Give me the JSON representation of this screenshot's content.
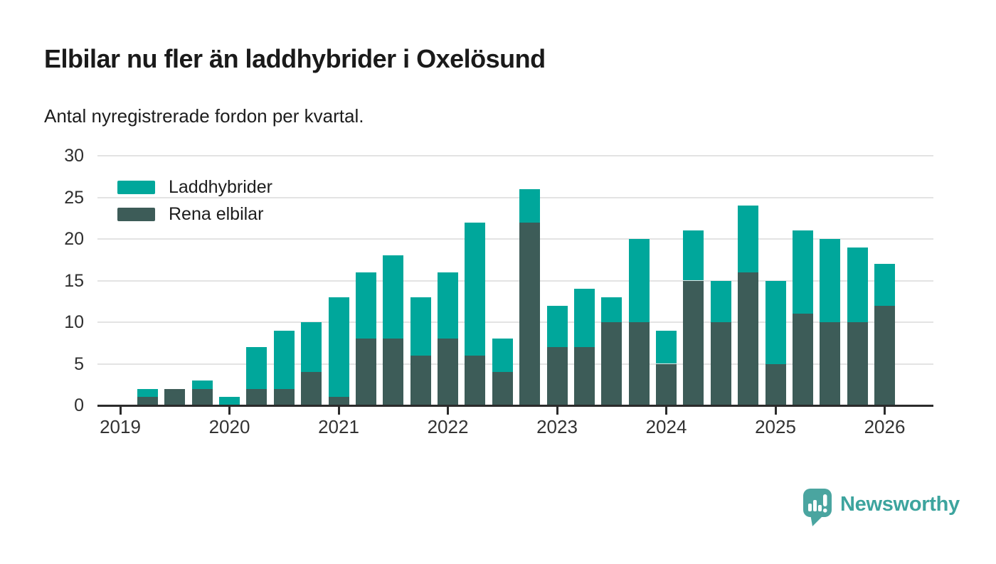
{
  "header": {
    "title": "Elbilar nu fler än laddhybrider i Oxelösund",
    "subtitle": "Antal nyregistrerade fordon per kvartal."
  },
  "chart_data": {
    "type": "bar",
    "stacked": true,
    "title": "Elbilar nu fler än laddhybrider i Oxelösund",
    "subtitle": "Antal nyregistrerade fordon per kvartal.",
    "xlabel": "",
    "ylabel": "",
    "ylim": [
      0,
      30
    ],
    "yticks": [
      0,
      5,
      10,
      15,
      20,
      25,
      30
    ],
    "grid": "horizontal",
    "legend_position": "top-left-inside",
    "x": [
      "2019-Q2",
      "2019-Q3",
      "2019-Q4",
      "2020-Q1",
      "2020-Q2",
      "2020-Q3",
      "2020-Q4",
      "2021-Q1",
      "2021-Q2",
      "2021-Q3",
      "2021-Q4",
      "2022-Q1",
      "2022-Q2",
      "2022-Q3",
      "2022-Q4",
      "2023-Q1",
      "2023-Q2",
      "2023-Q3",
      "2023-Q4",
      "2024-Q1",
      "2024-Q2",
      "2024-Q3",
      "2024-Q4",
      "2025-Q1",
      "2025-Q2",
      "2025-Q3",
      "2025-Q4",
      "2026-Q1"
    ],
    "x_tick_labels": [
      "2019",
      "2020",
      "2021",
      "2022",
      "2023",
      "2024",
      "2025",
      "2026"
    ],
    "series": [
      {
        "name": "Laddhybrider",
        "color": "#00a79b",
        "stack_position": "top",
        "values": [
          1,
          0,
          1,
          1,
          5,
          7,
          6,
          12,
          8,
          10,
          7,
          8,
          16,
          4,
          4,
          5,
          7,
          3,
          10,
          4,
          6,
          5,
          8,
          10,
          10,
          10,
          9,
          5
        ]
      },
      {
        "name": "Rena elbilar",
        "color": "#3d5c58",
        "stack_position": "bottom",
        "values": [
          1,
          2,
          2,
          0,
          2,
          2,
          4,
          1,
          8,
          8,
          6,
          8,
          6,
          4,
          22,
          7,
          7,
          10,
          10,
          5,
          15,
          10,
          16,
          5,
          11,
          10,
          10,
          12
        ]
      }
    ],
    "totals": [
      2,
      2,
      3,
      1,
      7,
      9,
      10,
      13,
      16,
      18,
      13,
      16,
      22,
      8,
      26,
      12,
      14,
      13,
      20,
      9,
      21,
      15,
      24,
      15,
      21,
      20,
      19,
      17
    ]
  },
  "colors": {
    "laddhybrider": "#00a79b",
    "rena_elbilar": "#3d5c58",
    "gridline": "#e3e3e3",
    "axis": "#2b2b2b",
    "text": "#1d1d1d",
    "tick_text": "#333333",
    "brand": "#3da49e",
    "brand_bubble": "#4aa5a0"
  },
  "footer": {
    "brand": "Newsworthy",
    "logo_icon": "newsworthy-bubble-barchart-icon"
  }
}
